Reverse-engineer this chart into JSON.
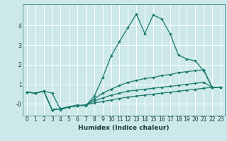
{
  "xlabel": "Humidex (Indice chaleur)",
  "background_color": "#cce8e8",
  "grid_color": "#ffffff",
  "line_color": "#1a7a6e",
  "x_values": [
    0,
    1,
    2,
    3,
    4,
    5,
    6,
    7,
    8,
    9,
    10,
    11,
    12,
    13,
    14,
    15,
    16,
    17,
    18,
    19,
    20,
    21,
    22,
    23
  ],
  "line1": [
    0.6,
    0.55,
    0.65,
    0.55,
    -0.3,
    -0.15,
    -0.05,
    -0.1,
    0.4,
    1.35,
    2.45,
    3.2,
    3.9,
    4.6,
    3.6,
    4.55,
    4.35,
    3.6,
    2.5,
    2.3,
    2.2,
    1.7,
    0.85,
    0.85
  ],
  "line2": [
    0.6,
    0.55,
    0.65,
    -0.3,
    -0.25,
    -0.15,
    -0.1,
    -0.05,
    0.25,
    0.55,
    0.75,
    0.95,
    1.1,
    1.2,
    1.3,
    1.35,
    1.45,
    1.5,
    1.6,
    1.65,
    1.7,
    1.75,
    0.85,
    0.85
  ],
  "line3": [
    0.6,
    0.55,
    0.65,
    -0.3,
    -0.25,
    -0.15,
    -0.1,
    -0.05,
    0.15,
    0.3,
    0.45,
    0.55,
    0.65,
    0.7,
    0.75,
    0.8,
    0.85,
    0.9,
    0.95,
    1.0,
    1.05,
    1.1,
    0.85,
    0.85
  ],
  "line4": [
    0.6,
    0.55,
    0.65,
    -0.3,
    -0.25,
    -0.15,
    -0.1,
    -0.05,
    0.05,
    0.12,
    0.2,
    0.28,
    0.35,
    0.4,
    0.45,
    0.5,
    0.55,
    0.6,
    0.65,
    0.7,
    0.75,
    0.8,
    0.85,
    0.85
  ],
  "ylim": [
    -0.6,
    5.1
  ],
  "xlim": [
    -0.5,
    23.5
  ],
  "yticks": [
    0,
    1,
    2,
    3,
    4
  ],
  "ytick_labels": [
    "-0",
    "1",
    "2",
    "3",
    "4"
  ],
  "xticks": [
    0,
    1,
    2,
    3,
    4,
    5,
    6,
    7,
    8,
    9,
    10,
    11,
    12,
    13,
    14,
    15,
    16,
    17,
    18,
    19,
    20,
    21,
    22,
    23
  ]
}
